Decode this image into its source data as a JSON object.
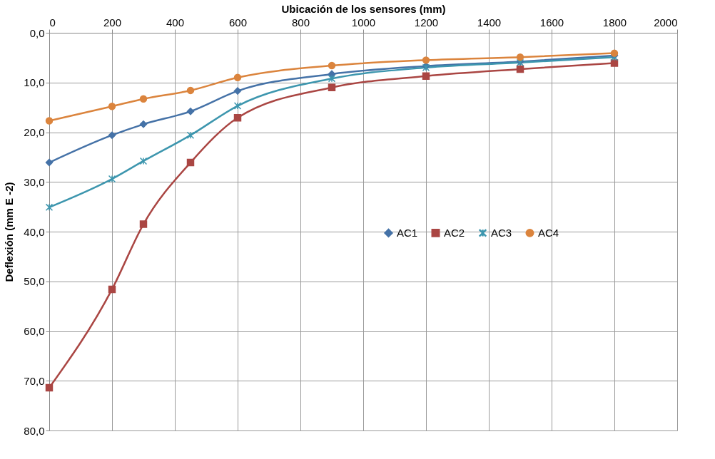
{
  "chart_data": {
    "type": "line",
    "xlabel": "Ubicación de los sensores (mm)",
    "ylabel": "Deflexión (mm E -2)",
    "x": [
      0,
      200,
      300,
      450,
      600,
      900,
      1200,
      1500,
      1800
    ],
    "series": [
      {
        "name": "AC1",
        "color": "#4572a7",
        "marker": "diamond",
        "values": [
          26.1,
          20.6,
          18.4,
          15.8,
          11.7,
          8.3,
          6.7,
          5.8,
          4.6
        ]
      },
      {
        "name": "AC2",
        "color": "#aa4643",
        "marker": "square",
        "values": [
          71.4,
          51.6,
          38.5,
          26.1,
          17.1,
          11.0,
          8.7,
          7.3,
          6.1
        ]
      },
      {
        "name": "AC3",
        "color": "#3d96ae",
        "marker": "cross",
        "values": [
          35.1,
          29.4,
          25.8,
          20.6,
          14.7,
          9.2,
          7.0,
          6.0,
          4.9
        ]
      },
      {
        "name": "AC4",
        "color": "#db843d",
        "marker": "circle",
        "values": [
          17.7,
          14.8,
          13.3,
          11.6,
          9.0,
          6.6,
          5.5,
          4.9,
          4.1
        ]
      }
    ],
    "xlim": [
      0,
      2000
    ],
    "xticks": [
      0,
      200,
      400,
      600,
      800,
      1000,
      1200,
      1400,
      1600,
      1800,
      2000
    ],
    "ylim": [
      80,
      0
    ],
    "yticks": [
      {
        "value": 0,
        "label": "0,0"
      },
      {
        "value": 10,
        "label": "10,0"
      },
      {
        "value": 20,
        "label": "20,0"
      },
      {
        "value": 30,
        "label": "30,0"
      },
      {
        "value": 40,
        "label": "40,0"
      },
      {
        "value": 50,
        "label": "50,0"
      },
      {
        "value": 60,
        "label": "60,0"
      },
      {
        "value": 70,
        "label": "70,0"
      },
      {
        "value": 80,
        "label": "80,0"
      }
    ],
    "grid": true,
    "legend": "right",
    "line_style": "solid"
  }
}
